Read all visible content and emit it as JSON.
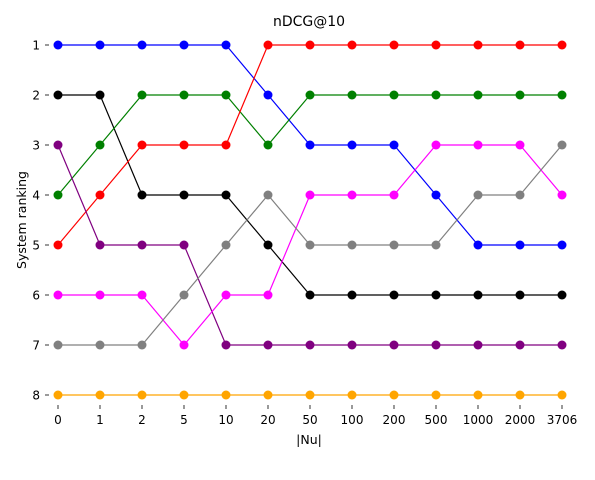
{
  "chart_data": {
    "type": "line",
    "title": "nDCG@10",
    "xlabel": "|Nu|",
    "ylabel": "System ranking",
    "categories": [
      "0",
      "1",
      "2",
      "5",
      "10",
      "20",
      "50",
      "100",
      "200",
      "500",
      "1000",
      "2000",
      "3706"
    ],
    "y_ticks": [
      "1",
      "2",
      "3",
      "4",
      "5",
      "6",
      "7",
      "8"
    ],
    "ylim": [
      1,
      8
    ],
    "y_inverted": true,
    "grid": false,
    "series": [
      {
        "color": "#0000ff",
        "values": [
          1,
          1,
          1,
          1,
          1,
          2,
          3,
          3,
          3,
          4,
          5,
          5,
          5
        ]
      },
      {
        "color": "#000000",
        "values": [
          2,
          2,
          4,
          4,
          4,
          5,
          6,
          6,
          6,
          6,
          6,
          6,
          6
        ]
      },
      {
        "color": "#008000",
        "values": [
          4,
          3,
          2,
          2,
          2,
          3,
          2,
          2,
          2,
          2,
          2,
          2,
          2
        ]
      },
      {
        "color": "#ff0000",
        "values": [
          5,
          4,
          3,
          3,
          3,
          1,
          1,
          1,
          1,
          1,
          1,
          1,
          1
        ]
      },
      {
        "color": "#800080",
        "values": [
          3,
          5,
          5,
          5,
          7,
          7,
          7,
          7,
          7,
          7,
          7,
          7,
          7
        ]
      },
      {
        "color": "#ff00ff",
        "values": [
          6,
          6,
          6,
          7,
          6,
          6,
          4,
          4,
          4,
          3,
          3,
          3,
          4
        ]
      },
      {
        "color": "#808080",
        "values": [
          7,
          7,
          7,
          6,
          5,
          4,
          5,
          5,
          5,
          5,
          4,
          4,
          3
        ]
      },
      {
        "color": "#ffa500",
        "values": [
          8,
          8,
          8,
          8,
          8,
          8,
          8,
          8,
          8,
          8,
          8,
          8,
          8
        ]
      }
    ]
  }
}
